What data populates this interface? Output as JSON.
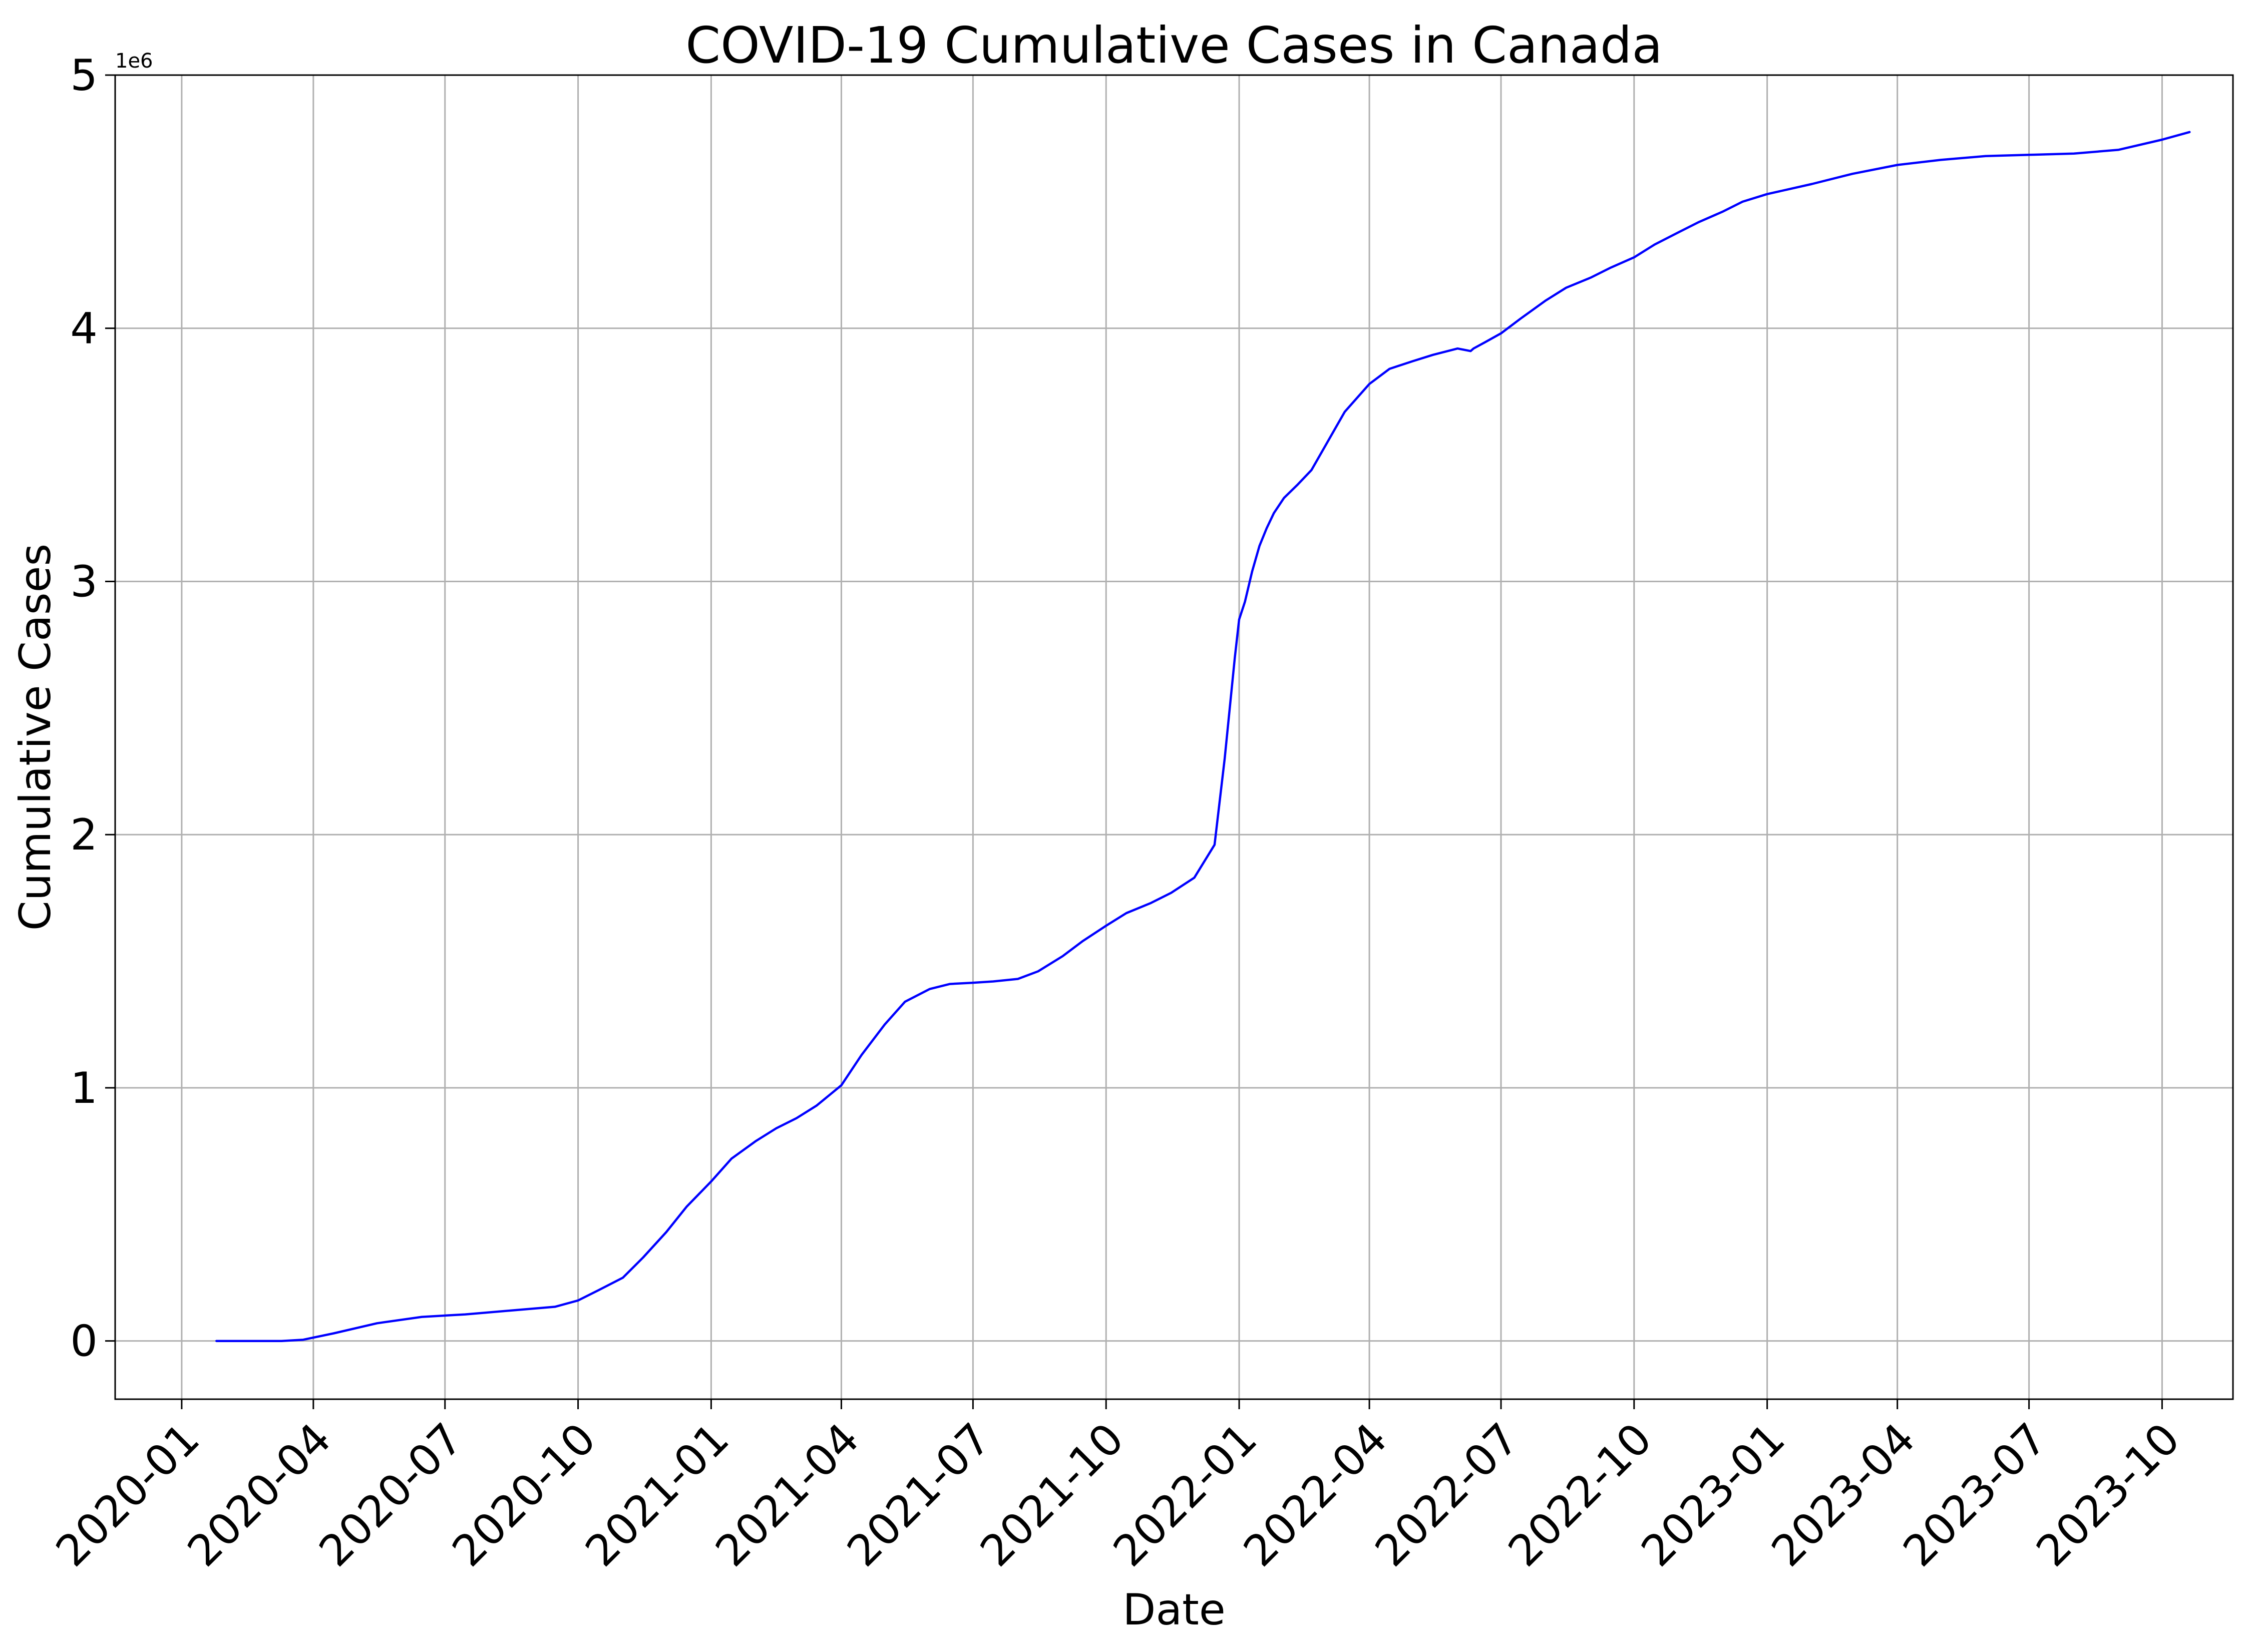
{
  "chart_data": {
    "type": "line",
    "title": "COVID-19 Cumulative Cases in Canada",
    "xlabel": "Date",
    "ylabel": "Cumulative Cases",
    "y_offset_label": "1e6",
    "xlim": [
      "2019-11-16",
      "2023-11-19"
    ],
    "ylim": [
      -0.23,
      5.0
    ],
    "x_ticks": [
      "2020-01",
      "2020-04",
      "2020-07",
      "2020-10",
      "2021-01",
      "2021-04",
      "2021-07",
      "2021-10",
      "2022-01",
      "2022-04",
      "2022-07",
      "2022-10",
      "2023-01",
      "2023-04",
      "2023-07",
      "2023-10"
    ],
    "y_ticks": [
      0,
      1,
      2,
      3,
      4,
      5
    ],
    "grid": true,
    "color": "#0000ff",
    "series": [
      {
        "x": [
          "2020-01-25",
          "2020-03-10",
          "2020-03-25",
          "2020-04-15",
          "2020-05-15",
          "2020-06-15",
          "2020-07-15",
          "2020-08-15",
          "2020-09-15",
          "2020-10-01",
          "2020-10-15",
          "2020-11-01",
          "2020-11-15",
          "2020-12-01",
          "2020-12-15",
          "2021-01-01",
          "2021-01-15",
          "2021-02-01",
          "2021-02-15",
          "2021-03-01",
          "2021-03-15",
          "2021-04-01",
          "2021-04-15",
          "2021-05-01",
          "2021-05-15",
          "2021-06-01",
          "2021-06-15",
          "2021-07-01",
          "2021-07-15",
          "2021-08-01",
          "2021-08-15",
          "2021-09-01",
          "2021-09-15",
          "2021-10-01",
          "2021-10-15",
          "2021-11-01",
          "2021-11-15",
          "2021-12-01",
          "2021-12-15",
          "2021-12-22",
          "2021-12-29",
          "2022-01-01",
          "2022-01-05",
          "2022-01-10",
          "2022-01-15",
          "2022-01-20",
          "2022-01-25",
          "2022-02-01",
          "2022-02-10",
          "2022-02-20",
          "2022-03-01",
          "2022-03-15",
          "2022-04-01",
          "2022-04-15",
          "2022-05-01",
          "2022-05-15",
          "2022-06-01",
          "2022-06-10",
          "2022-06-12",
          "2022-06-20",
          "2022-07-01",
          "2022-07-15",
          "2022-08-01",
          "2022-08-15",
          "2022-09-01",
          "2022-09-15",
          "2022-10-01",
          "2022-10-15",
          "2022-11-01",
          "2022-11-15",
          "2022-12-01",
          "2022-12-15",
          "2023-01-01",
          "2023-02-01",
          "2023-03-01",
          "2023-04-01",
          "2023-05-01",
          "2023-06-01",
          "2023-07-01",
          "2023-08-01",
          "2023-09-01",
          "2023-10-01",
          "2023-10-20"
        ],
        "y": [
          0.0,
          0.0,
          0.005,
          0.03,
          0.07,
          0.095,
          0.105,
          0.12,
          0.135,
          0.16,
          0.2,
          0.25,
          0.33,
          0.43,
          0.53,
          0.63,
          0.72,
          0.79,
          0.84,
          0.88,
          0.93,
          1.01,
          1.13,
          1.25,
          1.34,
          1.39,
          1.41,
          1.415,
          1.42,
          1.43,
          1.46,
          1.52,
          1.58,
          1.64,
          1.69,
          1.73,
          1.77,
          1.83,
          1.96,
          2.3,
          2.7,
          2.85,
          2.92,
          3.04,
          3.14,
          3.21,
          3.27,
          3.33,
          3.38,
          3.44,
          3.53,
          3.67,
          3.78,
          3.84,
          3.87,
          3.895,
          3.92,
          3.91,
          3.92,
          3.945,
          3.98,
          4.04,
          4.11,
          4.16,
          4.2,
          4.24,
          4.28,
          4.33,
          4.38,
          4.42,
          4.46,
          4.5,
          4.53,
          4.57,
          4.61,
          4.645,
          4.665,
          4.68,
          4.685,
          4.69,
          4.705,
          4.745,
          4.775
        ]
      }
    ]
  }
}
